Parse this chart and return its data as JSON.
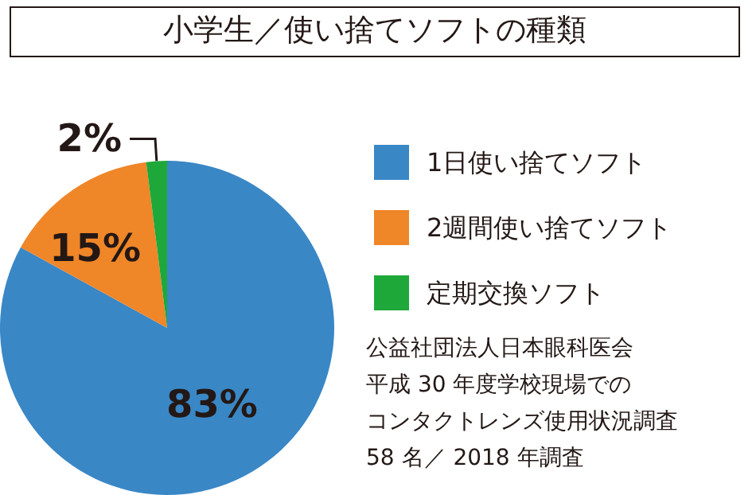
{
  "chart_data": {
    "type": "pie",
    "title": "小学生／使い捨てソフトの種類",
    "categories": [
      "1日使い捨てソフト",
      "2週間使い捨てソフト",
      "定期交換ソフト"
    ],
    "values": [
      83,
      15,
      2
    ],
    "colors": [
      "#3a87c6",
      "#ef8628",
      "#1ea83a"
    ],
    "value_labels": [
      "83%",
      "15%",
      "2%"
    ],
    "legend": "right",
    "annotations": [
      "公益社団法人日本眼科医会",
      "平成 30 年度学校現場での",
      "コンタクトレンズ使用状況調査",
      "58 名／ 2018 年調査"
    ]
  }
}
